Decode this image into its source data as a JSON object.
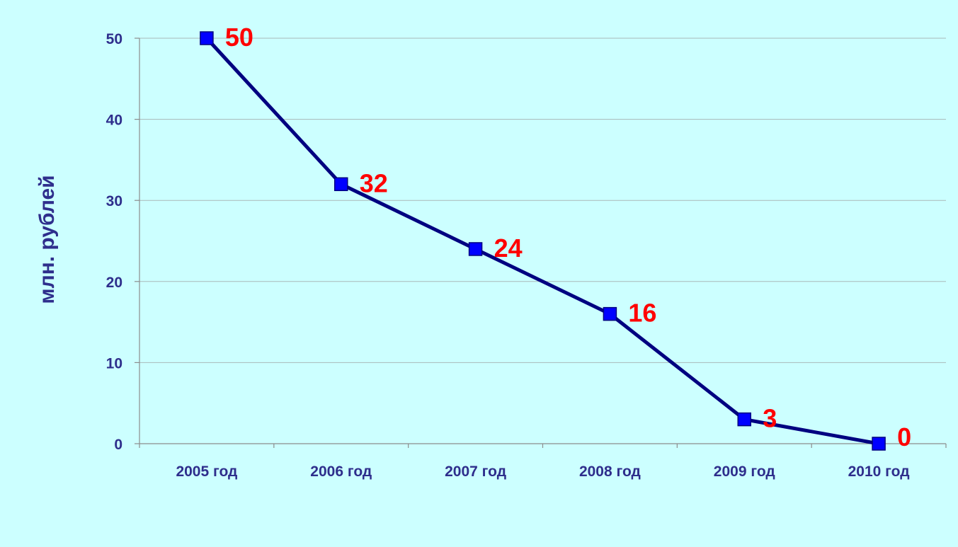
{
  "chart_data": {
    "type": "line",
    "categories": [
      "2005 год",
      "2006 год",
      "2007 год",
      "2008 год",
      "2009 год",
      "2010 год"
    ],
    "series": [
      {
        "values": [
          50,
          32,
          24,
          16,
          3,
          0
        ]
      }
    ],
    "data_labels": [
      "50",
      "32",
      "24",
      "16",
      "3",
      "0"
    ],
    "ylabel": "млн. рублей",
    "ylim": [
      0,
      50
    ],
    "yticks": [
      "0",
      "10",
      "20",
      "30",
      "40",
      "50"
    ],
    "grid": true,
    "legend": "none",
    "colors": {
      "background": "#ccffff",
      "line": "#000080",
      "marker": "#0000ff",
      "data_label": "#ff0000",
      "axis_text": "#2e2e8c"
    }
  }
}
